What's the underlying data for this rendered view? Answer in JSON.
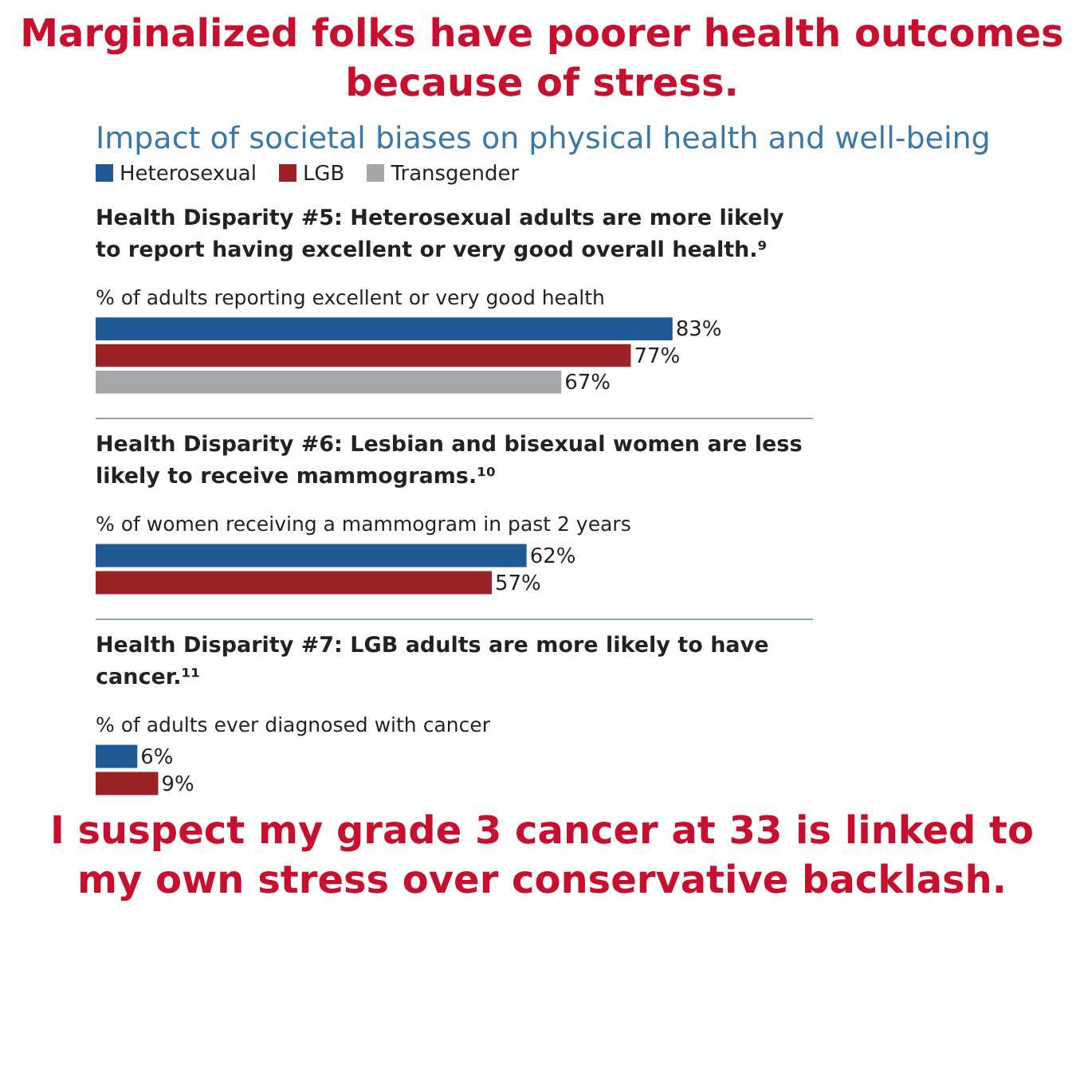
{
  "chart_data": [
    {
      "type": "bar",
      "orientation": "horizontal",
      "annotations": [
        "Marginalized folks have poorer health outcomes because of stress.",
        "Impact of societal biases on physical health and well-being"
      ],
      "title": "Health Disparity #5: Heterosexual adults are more likely to report having excellent or very good overall health.⁹",
      "subtitle": "% of adults reporting excellent or very good health",
      "categories": [
        null
      ],
      "legend": "top left",
      "series": [
        {
          "name": "Heterosexual",
          "color": "#1f5a96",
          "values": [
            83
          ],
          "value_labels": [
            "83%"
          ]
        },
        {
          "name": "LGB",
          "color": "#9b2226",
          "values": [
            77
          ],
          "value_labels": [
            "77%"
          ]
        },
        {
          "name": "Transgender",
          "color": "#a7a7aa",
          "values": [
            67
          ],
          "value_labels": [
            "67%"
          ]
        }
      ]
    },
    {
      "type": "bar",
      "orientation": "horizontal",
      "title": "Health Disparity #6: Lesbian and bisexual women are less likely to receive mammograms.¹⁰",
      "subtitle": "% of women receiving a mammogram in past 2 years",
      "categories": [
        null
      ],
      "series": [
        {
          "color": "#1f5a96",
          "values": [
            62
          ],
          "value_labels": [
            "62%"
          ]
        },
        {
          "color": "#9b2226",
          "values": [
            57
          ],
          "value_labels": [
            "57%"
          ]
        }
      ]
    },
    {
      "type": "bar",
      "orientation": "horizontal",
      "annotations": [
        "I suspect my grade 3 cancer at 33 is linked to my own stress over conservative backlash."
      ],
      "title": "Health Disparity #7: LGB adults are more likely to have cancer.¹¹",
      "subtitle": "% of adults ever diagnosed with cancer",
      "categories": [
        null
      ],
      "series": [
        {
          "color": "#1f5a96",
          "values": [
            6
          ],
          "value_labels": [
            "6%"
          ]
        },
        {
          "color": "#9b2226",
          "values": [
            9
          ],
          "value_labels": [
            "9%"
          ]
        }
      ]
    }
  ]
}
